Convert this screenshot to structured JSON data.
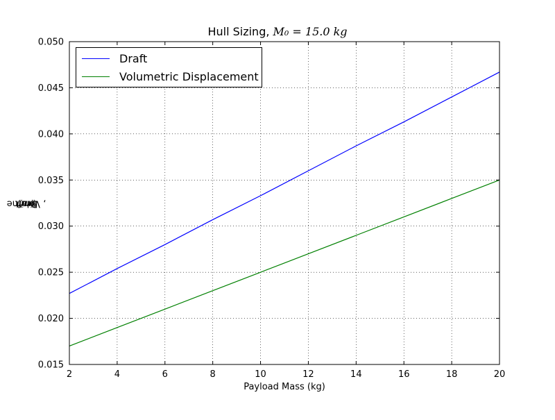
{
  "chart_data": {
    "type": "line",
    "title": {
      "text": "Hull Sizing, ",
      "math": "M₀ = 15.0 kg"
    },
    "xlabel": "Payload Mass (kg)",
    "ylabel": {
      "part1": "Draft ",
      "math1": "(m)",
      "part2": ", Volume ",
      "math2": "(m³)"
    },
    "xlim": [
      2,
      20
    ],
    "ylim": [
      0.015,
      0.05
    ],
    "xticks": [
      2,
      4,
      6,
      8,
      10,
      12,
      14,
      16,
      18,
      20
    ],
    "yticks": [
      "0.015",
      "0.020",
      "0.025",
      "0.030",
      "0.035",
      "0.040",
      "0.045",
      "0.050"
    ],
    "grid": true,
    "legend_position": "upper-left",
    "series": [
      {
        "name": "Draft",
        "color": "#0000ff",
        "x": [
          2,
          4,
          6,
          8,
          10,
          12,
          14,
          16,
          18,
          20
        ],
        "y": [
          0.0227,
          0.0254,
          0.028,
          0.0307,
          0.0333,
          0.036,
          0.0387,
          0.0413,
          0.044,
          0.0467
        ]
      },
      {
        "name": "Volumetric Displacement",
        "color": "#008000",
        "x": [
          2,
          4,
          6,
          8,
          10,
          12,
          14,
          16,
          18,
          20
        ],
        "y": [
          0.017,
          0.019,
          0.021,
          0.023,
          0.025,
          0.027,
          0.029,
          0.031,
          0.033,
          0.035
        ]
      }
    ]
  }
}
